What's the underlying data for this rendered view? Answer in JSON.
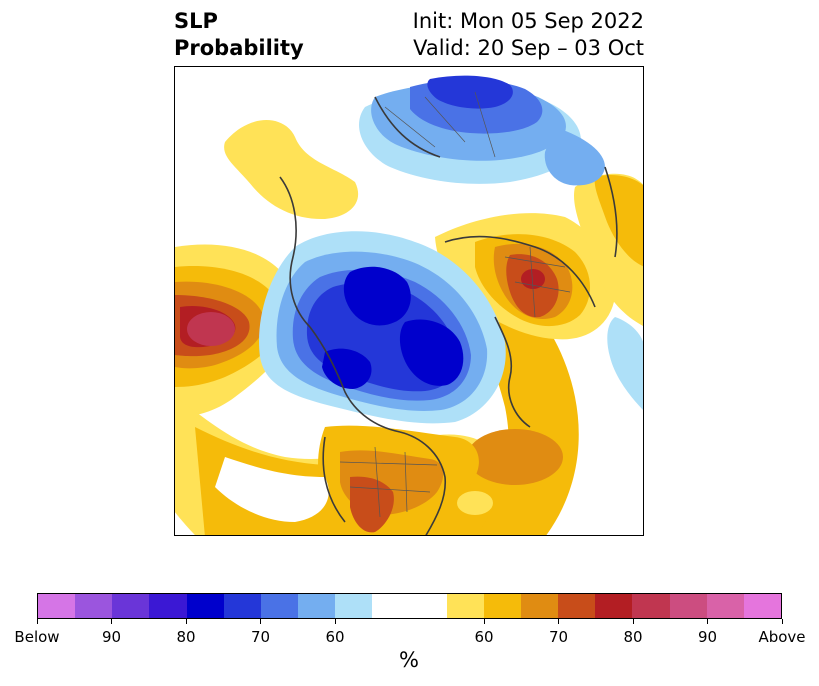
{
  "title": {
    "left_line1": "SLP",
    "left_line2": "Probability",
    "right_line1": "Init: Mon 05 Sep 2022",
    "right_line2": "Valid: 20 Sep – 03 Oct"
  },
  "colorbar": {
    "unit": "%",
    "below_colors": [
      "#d575e6",
      "#9b55de",
      "#6a35d8",
      "#3b18d4",
      "#0000cc",
      "#2437d8",
      "#4a72e6",
      "#74aef0",
      "#aee0f8"
    ],
    "neutral_color": "#ffffff",
    "above_colors": [
      "#ffe257",
      "#f5bb0a",
      "#e08c12",
      "#c84d1a",
      "#b31e23",
      "#c03650",
      "#cc4d80",
      "#d962a8",
      "#e575dd"
    ],
    "tick_labels": [
      "Below",
      "90",
      "80",
      "70",
      "60",
      "60",
      "70",
      "80",
      "90",
      "Above"
    ]
  }
}
